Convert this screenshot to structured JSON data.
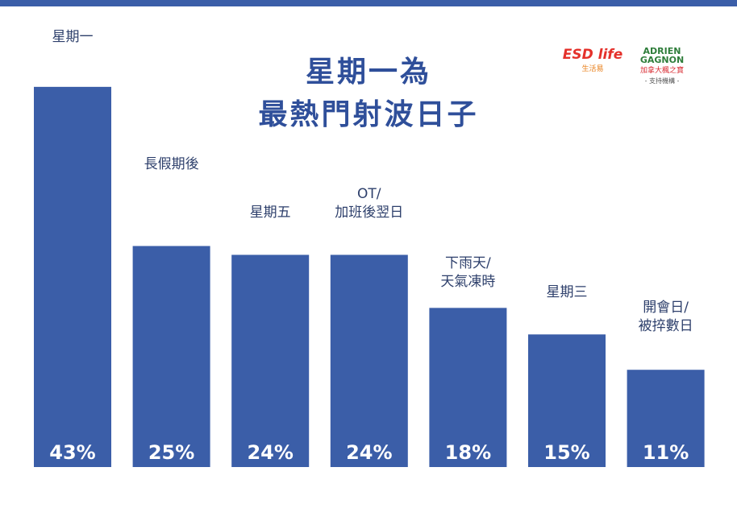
{
  "chart_data": {
    "type": "bar",
    "title": [
      "星期一為",
      "最熱門射波日子"
    ],
    "categories": [
      "星期一",
      "長假期後",
      "星期五",
      "OT/\n加班後翌日",
      "下雨天/\n天氣凍時",
      "星期三",
      "開會日/\n被捽數日"
    ],
    "values": [
      43,
      25,
      24,
      24,
      18,
      15,
      11
    ],
    "value_labels": [
      "43%",
      "25%",
      "24%",
      "24%",
      "18%",
      "15%",
      "11%"
    ],
    "color": "#3b5ea8",
    "ylim": [
      0,
      50
    ]
  },
  "sponsors": {
    "esd": "ESD life",
    "esd_sub": "生活易",
    "adrien": "ADRIEN GAGNON",
    "adrien_sub": "加拿大楓之寶",
    "caption": "- 支持機構 -"
  }
}
